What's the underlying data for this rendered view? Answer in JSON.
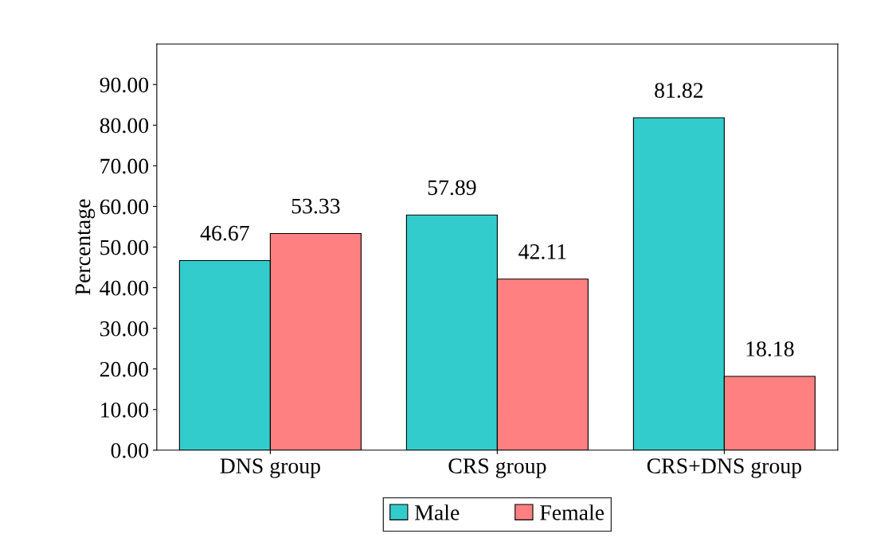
{
  "chart_data": {
    "type": "bar",
    "ylabel": "Percentage",
    "categories": [
      "DNS group",
      "CRS group",
      "CRS+DNS group"
    ],
    "series": [
      {
        "name": "Male",
        "color": "#33cccc",
        "values": [
          46.67,
          57.89,
          81.82
        ]
      },
      {
        "name": "Female",
        "color": "#ff8080",
        "values": [
          53.33,
          42.11,
          18.18
        ]
      }
    ],
    "ylim": [
      0,
      100
    ],
    "yticks": [
      {
        "value": 0,
        "label": "0.00"
      },
      {
        "value": 10,
        "label": "10.00"
      },
      {
        "value": 20,
        "label": "20.00"
      },
      {
        "value": 30,
        "label": "30.00"
      },
      {
        "value": 40,
        "label": "40.00"
      },
      {
        "value": 50,
        "label": "50.00"
      },
      {
        "value": 60,
        "label": "60.00"
      },
      {
        "value": 70,
        "label": "70.00"
      },
      {
        "value": 80,
        "label": "80.00"
      },
      {
        "value": 90,
        "label": "90.00"
      }
    ],
    "data_labels": true,
    "legend": "bottom"
  }
}
